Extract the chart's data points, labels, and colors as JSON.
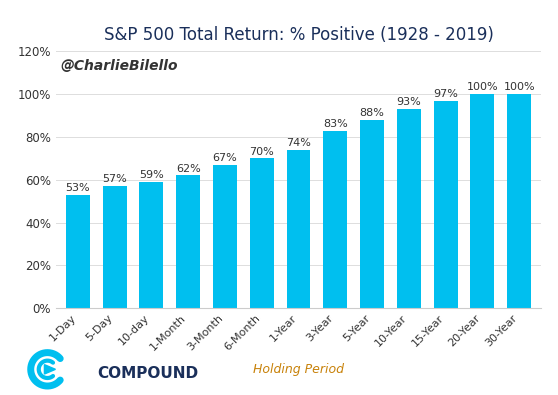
{
  "title": "S&P 500 Total Return: % Positive (1928 - 2019)",
  "categories": [
    "1-Day",
    "5-Day",
    "10-day",
    "1-Month",
    "3-Month",
    "6-Month",
    "1-Year",
    "3-Year",
    "5-Year",
    "10-Year",
    "15-Year",
    "20-Year",
    "30-Year"
  ],
  "values": [
    0.53,
    0.57,
    0.59,
    0.62,
    0.67,
    0.7,
    0.74,
    0.83,
    0.88,
    0.93,
    0.97,
    1.0,
    1.0
  ],
  "labels": [
    "53%",
    "57%",
    "59%",
    "62%",
    "67%",
    "70%",
    "74%",
    "83%",
    "88%",
    "93%",
    "97%",
    "100%",
    "100%"
  ],
  "bar_color": "#00BFEF",
  "xlabel": "Holding Period",
  "ylim": [
    0,
    1.2
  ],
  "yticks": [
    0.0,
    0.2,
    0.4,
    0.6,
    0.8,
    1.0,
    1.2
  ],
  "ytick_labels": [
    "0%",
    "20%",
    "40%",
    "60%",
    "80%",
    "100%",
    "120%"
  ],
  "title_fontsize": 12,
  "label_fontsize": 8,
  "xtick_fontsize": 8,
  "ytick_fontsize": 8.5,
  "watermark": "@CharlieBilello",
  "watermark_fontsize": 10,
  "compound_text": "COMPOUND",
  "compound_color": "#1a2f5a",
  "logo_color": "#00BFEF",
  "background_color": "#ffffff",
  "xlabel_fontsize": 9,
  "xlabel_color": "#c8820a"
}
